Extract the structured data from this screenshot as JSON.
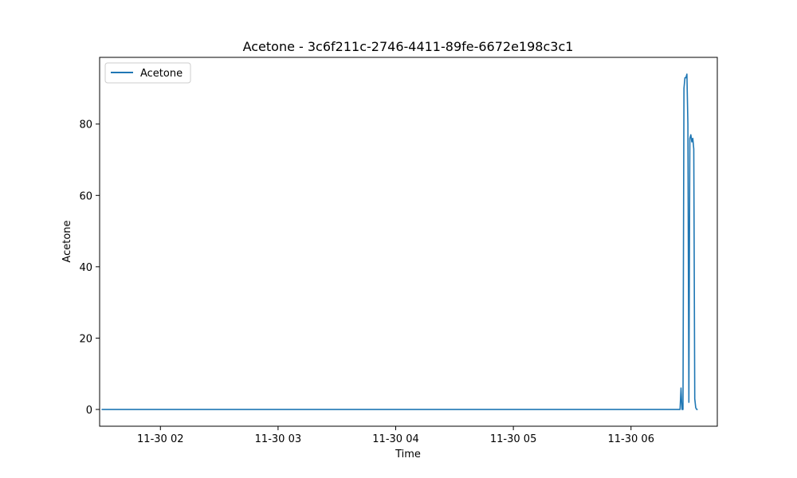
{
  "chart_data": {
    "type": "line",
    "title": "Acetone - 3c6f211c-2746-4411-89fe-6672e198c3c1",
    "xlabel": "Time",
    "ylabel": "Acetone",
    "x_axis_type": "time",
    "xlim": [
      "11-30 01:29",
      "11-30 06:44"
    ],
    "ylim": [
      -4.7,
      98.7
    ],
    "x_ticks": [
      "11-30 02:00",
      "11-30 03:00",
      "11-30 04:00",
      "11-30 05:00",
      "11-30 06:00"
    ],
    "x_tick_labels": [
      "11-30 02",
      "11-30 03",
      "11-30 04",
      "11-30 05",
      "11-30 06"
    ],
    "y_ticks": [
      0,
      20,
      40,
      60,
      80
    ],
    "y_tick_labels": [
      "0",
      "20",
      "40",
      "60",
      "80"
    ],
    "grid": false,
    "legend": {
      "position": "top-left",
      "entries": [
        "Acetone"
      ]
    },
    "colors": {
      "series": "#1f77b4",
      "axes": "#000000",
      "background": "#ffffff"
    },
    "series": [
      {
        "name": "Acetone",
        "x": [
          "11-30 01:30",
          "11-30 02:00",
          "11-30 03:00",
          "11-30 04:00",
          "11-30 05:00",
          "11-30 06:00",
          "11-30 06:25",
          "11-30 06:25:30",
          "11-30 06:26",
          "11-30 06:26:30",
          "11-30 06:27",
          "11-30 06:27:30",
          "11-30 06:28",
          "11-30 06:28:30",
          "11-30 06:29",
          "11-30 06:29:30",
          "11-30 06:30",
          "11-30 06:30:30",
          "11-30 06:31",
          "11-30 06:31:30",
          "11-30 06:32",
          "11-30 06:32:30",
          "11-30 06:33",
          "11-30 06:33:30",
          "11-30 06:34"
        ],
        "y": [
          0,
          0,
          0,
          0,
          0,
          0,
          0,
          6,
          0,
          0,
          90,
          93,
          93,
          94,
          80,
          2,
          76,
          77,
          75,
          76,
          73,
          3,
          0.5,
          0,
          0
        ]
      }
    ]
  }
}
